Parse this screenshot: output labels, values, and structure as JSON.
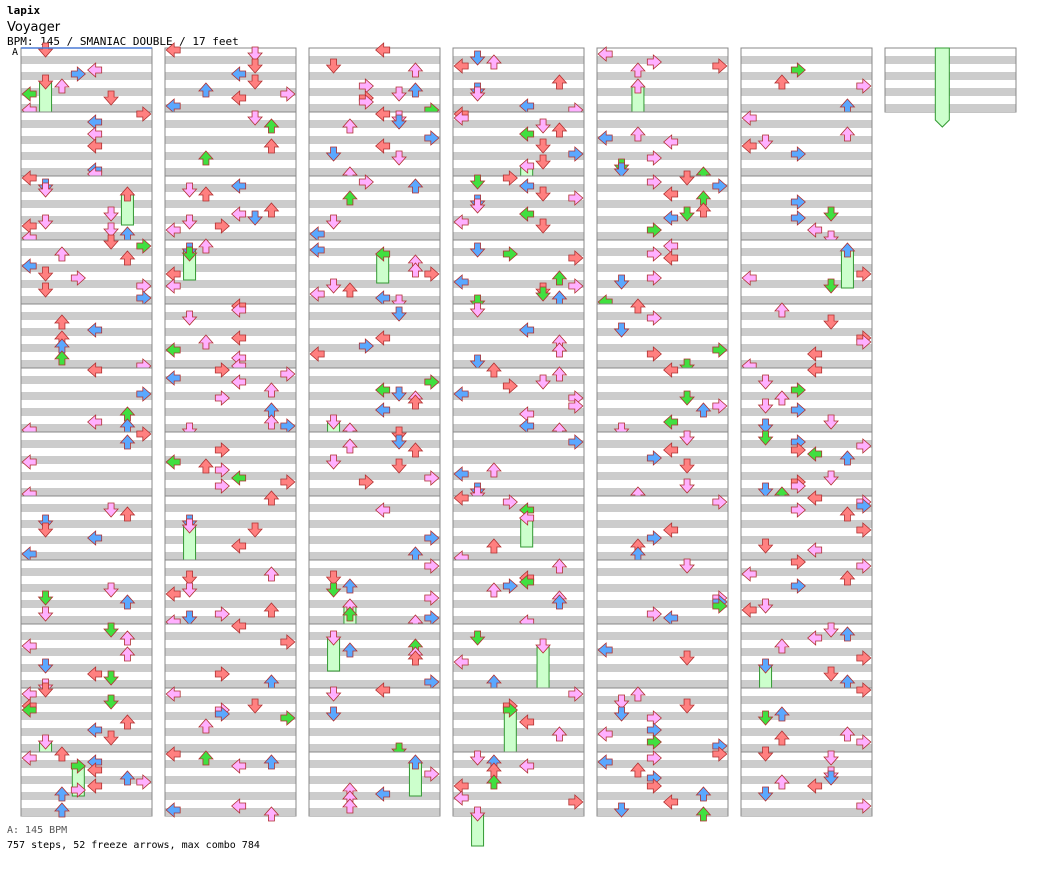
{
  "song": {
    "artist": "lapix",
    "title": "Voyager",
    "bpm_line": "BPM: 145 / SMANIAC DOUBLE / 17 feet",
    "bpm_marker": "A"
  },
  "footer": {
    "bpm_info": "A: 145 BPM",
    "stats": "757 steps, 52 freeze arrows, max combo 784"
  },
  "stats": {
    "steps": 757,
    "freeze_arrows": 52,
    "max_combo": 784,
    "feet": 17,
    "bpm": 145
  },
  "chart_layout": {
    "panels": 7,
    "measures_per_panel": 12,
    "measures_in_last_panel": 1,
    "lanes": 8
  },
  "colors": {
    "quarter": "#ff8080",
    "eighth": "#5aa8ff",
    "sixteenth": "#ffb0ff",
    "twentyfourth": "#40e040",
    "freeze_fill": "#ccffcc",
    "freeze_border": "#339933",
    "stripe": "#cccccc",
    "border": "#888888"
  }
}
